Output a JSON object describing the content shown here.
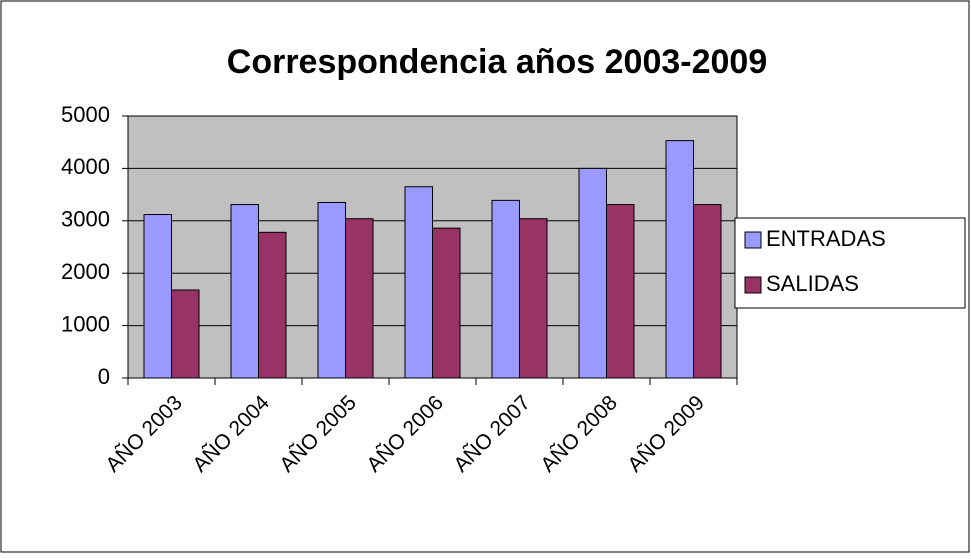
{
  "chart_data": {
    "type": "bar",
    "title": "Correspondencia años 2003-2009",
    "categories": [
      "AÑO 2003",
      "AÑO 2004",
      "AÑO 2005",
      "AÑO 2006",
      "AÑO 2007",
      "AÑO 2008",
      "AÑO 2009"
    ],
    "series": [
      {
        "name": "ENTRADAS",
        "color": "#9999ff",
        "values": [
          3120,
          3310,
          3350,
          3650,
          3390,
          4000,
          4530
        ]
      },
      {
        "name": "SALIDAS",
        "color": "#993366",
        "values": [
          1680,
          2780,
          3040,
          2860,
          3040,
          3310,
          3310
        ]
      }
    ],
    "ylim": [
      0,
      5000
    ],
    "yticks": [
      0,
      1000,
      2000,
      3000,
      4000,
      5000
    ],
    "grid": true,
    "legend": "right"
  }
}
